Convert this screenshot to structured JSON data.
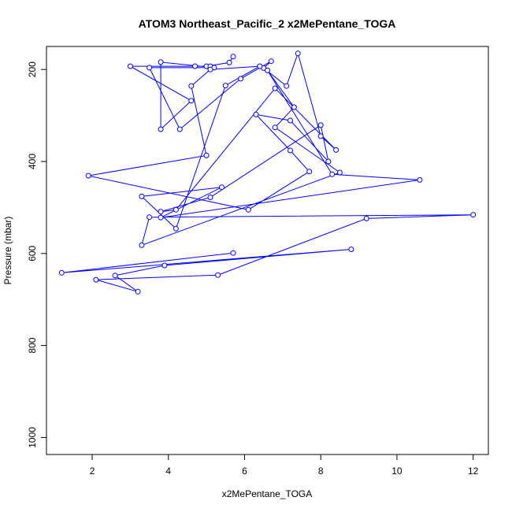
{
  "chart_data": {
    "type": "line",
    "title": "ATOM3 Northeast_Pacific_2 x2MePentane_TOGA",
    "xlabel": "x2MePentane_TOGA",
    "ylabel": "Pressure (mbar)",
    "xlim": [
      0.8,
      12.4
    ],
    "ylim": [
      1037,
      150
    ],
    "y_reversed": true,
    "x_ticks": [
      2,
      4,
      6,
      8,
      10,
      12
    ],
    "y_ticks": [
      200,
      400,
      600,
      800,
      1000
    ],
    "grid": false,
    "marker": "open-circle",
    "color": "#0000ff",
    "series": [
      {
        "x": [
          5.7,
          5.6,
          5.0,
          4.7,
          5.1,
          3.0,
          4.6,
          3.8,
          3.8,
          5.2,
          3.5,
          4.3,
          5.9,
          6.7,
          6.5,
          7.1,
          7.4,
          8.0,
          8.4,
          6.8,
          4.2,
          3.8,
          5.1,
          8.0,
          8.2,
          7.2,
          6.3,
          7.2,
          7.7,
          6.1,
          1.9,
          5.0,
          4.6,
          5.1,
          6.4,
          5.5,
          4.2,
          3.3,
          5.4,
          3.8,
          10.6,
          8.3,
          6.6,
          7.3,
          6.8,
          8.5,
          3.3,
          3.5,
          12.0,
          9.2,
          5.3,
          2.1,
          3.2,
          2.6,
          3.9,
          8.8,
          1.2,
          5.7
        ],
        "y": [
          172,
          185,
          193,
          193,
          193,
          193,
          268,
          330,
          184,
          196,
          196,
          330,
          220,
          182,
          197,
          236,
          165,
          345,
          375,
          241,
          505,
          509,
          478,
          321,
          400,
          311,
          298,
          376,
          422,
          505,
          431,
          387,
          236,
          200,
          193,
          235,
          546,
          476,
          456,
          522,
          440,
          428,
          202,
          282,
          326,
          424,
          582,
          521,
          516,
          524,
          647,
          657,
          683,
          648,
          626,
          591,
          642,
          599
        ]
      }
    ]
  }
}
